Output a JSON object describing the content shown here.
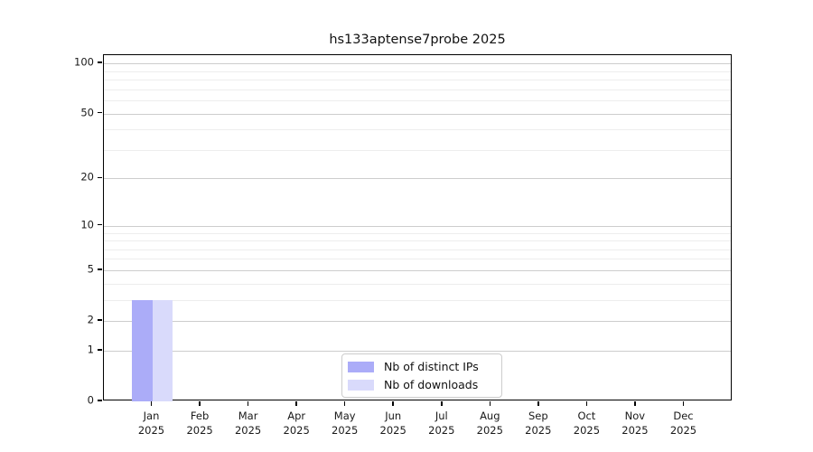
{
  "title": "hs133aptense7probe 2025",
  "chart_data": {
    "type": "bar",
    "title": "hs133aptense7probe 2025",
    "categories": [
      "Jan",
      "Feb",
      "Mar",
      "Apr",
      "May",
      "Jun",
      "Jul",
      "Aug",
      "Sep",
      "Oct",
      "Nov",
      "Dec"
    ],
    "year_label": "2025",
    "series": [
      {
        "name": "Nb of distinct IPs",
        "color": "#abacf8",
        "values": [
          3,
          0,
          0,
          0,
          0,
          0,
          0,
          0,
          0,
          0,
          0,
          0
        ]
      },
      {
        "name": "Nb of downloads",
        "color": "#d9dafb",
        "values": [
          3,
          0,
          0,
          0,
          0,
          0,
          0,
          0,
          0,
          0,
          0,
          0
        ]
      }
    ],
    "yscale": "log1p",
    "yticks_major": [
      0,
      1,
      2,
      5,
      10,
      20,
      50,
      100
    ],
    "yticks_minor": [
      3,
      4,
      6,
      7,
      8,
      9,
      30,
      40,
      60,
      70,
      80,
      90
    ],
    "ylim": [
      0,
      112
    ],
    "xlabel": "",
    "ylabel": "",
    "grid": "horizontal-only",
    "legend_position": "lower center",
    "colors": {
      "grid_major": "#cdcdcd",
      "grid_minor": "#ededed",
      "spine": "#000000",
      "background": "#ffffff"
    }
  }
}
